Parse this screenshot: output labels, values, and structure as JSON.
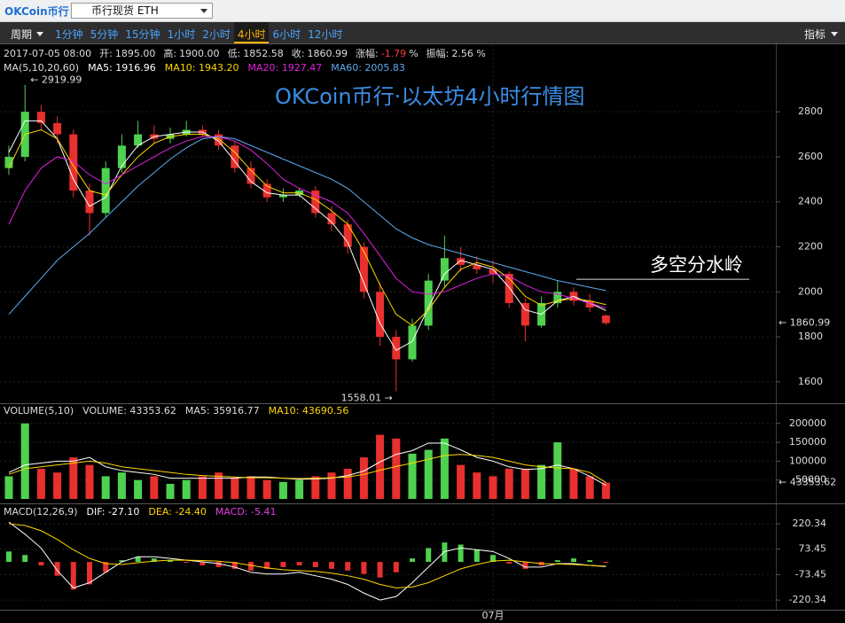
{
  "toolbar": {
    "logo": "OKCoin币行",
    "market": "币行现货 ETH",
    "period_menu": "周期",
    "periods": [
      "1分钟",
      "5分钟",
      "15分钟",
      "1小时",
      "2小时",
      "4小时",
      "6小时",
      "12小时"
    ],
    "selected_period": "4小时",
    "indicator_menu": "指标"
  },
  "info": {
    "datetime": "2017-07-05 08:00",
    "fields": [
      {
        "label": "开:",
        "value": "1895.00"
      },
      {
        "label": "高:",
        "value": "1900.00"
      },
      {
        "label": "低:",
        "value": "1852.58"
      },
      {
        "label": "收:",
        "value": "1860.99"
      },
      {
        "label": "涨幅:",
        "value": "-1.79",
        "unit": "%",
        "color": "#ff3b3b"
      },
      {
        "label": "振幅:",
        "value": "2.56 %"
      }
    ]
  },
  "chart_data": [
    {
      "type": "candlestick",
      "title": "OKCoin币行·以太坊4小时行情图",
      "indicator": "MA(5,10,20,60)",
      "categories": [
        null,
        null,
        null,
        null,
        null,
        null,
        null,
        null,
        null,
        null,
        null,
        null,
        null,
        null,
        null,
        null,
        null,
        null,
        null,
        null,
        null,
        null,
        null,
        null,
        null,
        null,
        null,
        null,
        null,
        null,
        "07月",
        null,
        null,
        null,
        null,
        null,
        null,
        null
      ],
      "open": [
        2550,
        2600,
        2800,
        2750,
        2700,
        2450,
        2350,
        2550,
        2650,
        2700,
        2680,
        2700,
        2720,
        2700,
        2650,
        2550,
        2480,
        2420,
        2430,
        2450,
        2350,
        2300,
        2200,
        2000,
        1800,
        1700,
        1850,
        2050,
        2150,
        2120,
        2100,
        2080,
        1950,
        1850,
        1950,
        2000,
        1960,
        1895
      ],
      "high": [
        2650,
        2919.99,
        2830,
        2780,
        2720,
        2480,
        2580,
        2700,
        2760,
        2740,
        2730,
        2760,
        2740,
        2720,
        2670,
        2580,
        2500,
        2460,
        2460,
        2470,
        2380,
        2320,
        2220,
        2040,
        1830,
        1880,
        2080,
        2250,
        2200,
        2160,
        2140,
        2090,
        1970,
        1980,
        2050,
        2020,
        1990,
        1900
      ],
      "low": [
        2520,
        2580,
        2720,
        2660,
        2420,
        2250,
        2330,
        2530,
        2640,
        2660,
        2660,
        2690,
        2690,
        2630,
        2530,
        2460,
        2400,
        2400,
        2420,
        2330,
        2270,
        2170,
        1970,
        1760,
        1558.01,
        1690,
        1830,
        2020,
        2090,
        2080,
        2040,
        1930,
        1780,
        1840,
        1930,
        1940,
        1910,
        1852.58
      ],
      "close": [
        2600,
        2800,
        2750,
        2700,
        2450,
        2350,
        2550,
        2650,
        2700,
        2680,
        2700,
        2720,
        2700,
        2650,
        2550,
        2480,
        2420,
        2430,
        2450,
        2350,
        2300,
        2200,
        2000,
        1800,
        1700,
        1850,
        2050,
        2150,
        2120,
        2100,
        2080,
        1950,
        1850,
        1950,
        2000,
        1960,
        1930,
        1860.99
      ],
      "up_color": "#4fd14f",
      "down_color": "#e8302e",
      "series": [
        {
          "name": "MA5",
          "legend": "MA5: 1916.96",
          "color": "#ffffff",
          "values": [
            2620,
            2760,
            2760,
            2680,
            2500,
            2380,
            2420,
            2560,
            2650,
            2690,
            2700,
            2710,
            2710,
            2670,
            2580,
            2490,
            2440,
            2430,
            2430,
            2370,
            2310,
            2220,
            2040,
            1860,
            1740,
            1780,
            1930,
            2080,
            2140,
            2120,
            2100,
            2020,
            1920,
            1900,
            1960,
            1980,
            1950,
            1916.96
          ]
        },
        {
          "name": "MA10",
          "legend": "MA10: 1943.20",
          "color": "#ffd700",
          "values": [
            2550,
            2700,
            2720,
            2680,
            2560,
            2450,
            2430,
            2520,
            2600,
            2660,
            2690,
            2700,
            2700,
            2680,
            2620,
            2540,
            2470,
            2440,
            2440,
            2410,
            2360,
            2300,
            2180,
            2030,
            1900,
            1850,
            1920,
            2020,
            2100,
            2130,
            2110,
            2060,
            1980,
            1940,
            1960,
            1970,
            1960,
            1943.2
          ]
        },
        {
          "name": "MA20",
          "legend": "MA20: 1927.47",
          "color": "#e020e0",
          "values": [
            2300,
            2450,
            2550,
            2600,
            2580,
            2520,
            2480,
            2520,
            2560,
            2600,
            2640,
            2670,
            2690,
            2690,
            2670,
            2630,
            2570,
            2500,
            2460,
            2430,
            2400,
            2350,
            2260,
            2160,
            2060,
            2000,
            1990,
            2000,
            2030,
            2060,
            2080,
            2070,
            2030,
            2000,
            1990,
            1970,
            1950,
            1927.47
          ]
        },
        {
          "name": "MA60",
          "legend": "MA60: 2005.83",
          "color": "#5aaaf0",
          "values": [
            1900,
            1980,
            2060,
            2140,
            2200,
            2260,
            2330,
            2400,
            2470,
            2530,
            2590,
            2640,
            2680,
            2690,
            2680,
            2650,
            2620,
            2590,
            2560,
            2530,
            2500,
            2460,
            2400,
            2340,
            2280,
            2240,
            2210,
            2190,
            2170,
            2150,
            2130,
            2110,
            2090,
            2070,
            2050,
            2035,
            2020,
            2005.83
          ]
        }
      ],
      "ylim": [
        1505,
        3100
      ],
      "yticks": [
        1600,
        1800,
        2000,
        2200,
        2400,
        2600,
        2800
      ],
      "grid": true,
      "high_label": "← 2919.99",
      "low_label": "1558.01 →",
      "last_label": "← 1860.99",
      "last_color": "#ffd700",
      "reference_line": {
        "value": 2056,
        "label": "多空分水岭"
      }
    },
    {
      "type": "bar",
      "title": "VOLUME(5,10)",
      "legend": "VOLUME: 43353.62",
      "values": [
        60000,
        200000,
        80000,
        70000,
        110000,
        90000,
        60000,
        70000,
        50000,
        60000,
        40000,
        50000,
        60000,
        70000,
        55000,
        60000,
        50000,
        45000,
        50000,
        60000,
        70000,
        80000,
        110000,
        170000,
        160000,
        120000,
        130000,
        160000,
        90000,
        70000,
        60000,
        80000,
        80000,
        90000,
        150000,
        80000,
        60000,
        43353.62
      ],
      "series": [
        {
          "name": "MA5",
          "legend": "MA5: 35916.77",
          "color": "#ffffff",
          "values": [
            70000,
            90000,
            95000,
            100000,
            100000,
            110000,
            85000,
            75000,
            70000,
            65000,
            55000,
            55000,
            55000,
            55000,
            55000,
            58000,
            58000,
            55000,
            52000,
            53000,
            55000,
            62000,
            74000,
            98000,
            118000,
            128000,
            148000,
            148000,
            130000,
            110000,
            100000,
            85000,
            78000,
            80000,
            90000,
            80000,
            60000,
            35916.77
          ]
        },
        {
          "name": "MA10",
          "legend": "MA10: 43690.56",
          "color": "#ffd700",
          "values": [
            65000,
            80000,
            85000,
            90000,
            95000,
            100000,
            95000,
            85000,
            80000,
            75000,
            70000,
            65000,
            62000,
            60000,
            58000,
            56000,
            56000,
            55000,
            54000,
            55000,
            56000,
            58000,
            65000,
            76000,
            86000,
            95000,
            105000,
            115000,
            118000,
            115000,
            110000,
            100000,
            90000,
            85000,
            82000,
            80000,
            70000,
            43690.56
          ]
        }
      ],
      "ylim": [
        0,
        250000
      ],
      "yticks": [
        50000,
        100000,
        150000,
        200000
      ],
      "last_label": "← 43353.62",
      "last_color": "#ffd700"
    },
    {
      "type": "macd",
      "title": "MACD(12,26,9)",
      "series": [
        {
          "name": "DIF",
          "legend": "DIF: -27.10",
          "color": "#ffffff",
          "values": [
            230,
            160,
            80,
            -50,
            -150,
            -120,
            -60,
            0,
            30,
            30,
            20,
            10,
            0,
            -10,
            -30,
            -60,
            -70,
            -70,
            -60,
            -80,
            -100,
            -130,
            -180,
            -220,
            -200,
            -120,
            -30,
            60,
            80,
            70,
            60,
            20,
            -30,
            -30,
            -10,
            -10,
            -20,
            -27.1
          ]
        },
        {
          "name": "DEA",
          "legend": "DEA: -24.40",
          "color": "#ffd700",
          "values": [
            220,
            210,
            180,
            130,
            70,
            20,
            -10,
            -15,
            -5,
            5,
            10,
            10,
            8,
            4,
            -5,
            -20,
            -35,
            -45,
            -50,
            -55,
            -65,
            -80,
            -100,
            -130,
            -150,
            -145,
            -120,
            -80,
            -40,
            -15,
            5,
            10,
            0,
            -10,
            -12,
            -15,
            -20,
            -24.4
          ]
        }
      ],
      "histogram": {
        "name": "MACD",
        "legend": "MACD: -5.41",
        "color": "#e040e0",
        "values": [
          60,
          40,
          -20,
          -80,
          -160,
          -130,
          -60,
          10,
          30,
          20,
          10,
          -5,
          -20,
          -30,
          -40,
          -50,
          -40,
          -30,
          -20,
          -30,
          -40,
          -50,
          -70,
          -90,
          -60,
          20,
          80,
          112,
          100,
          70,
          40,
          -10,
          -40,
          -20,
          10,
          20,
          10,
          -5.41
        ]
      },
      "ylim": [
        -276,
        338
      ],
      "yticks": [
        -220.34,
        -73.45,
        73.45,
        220.34
      ]
    }
  ]
}
